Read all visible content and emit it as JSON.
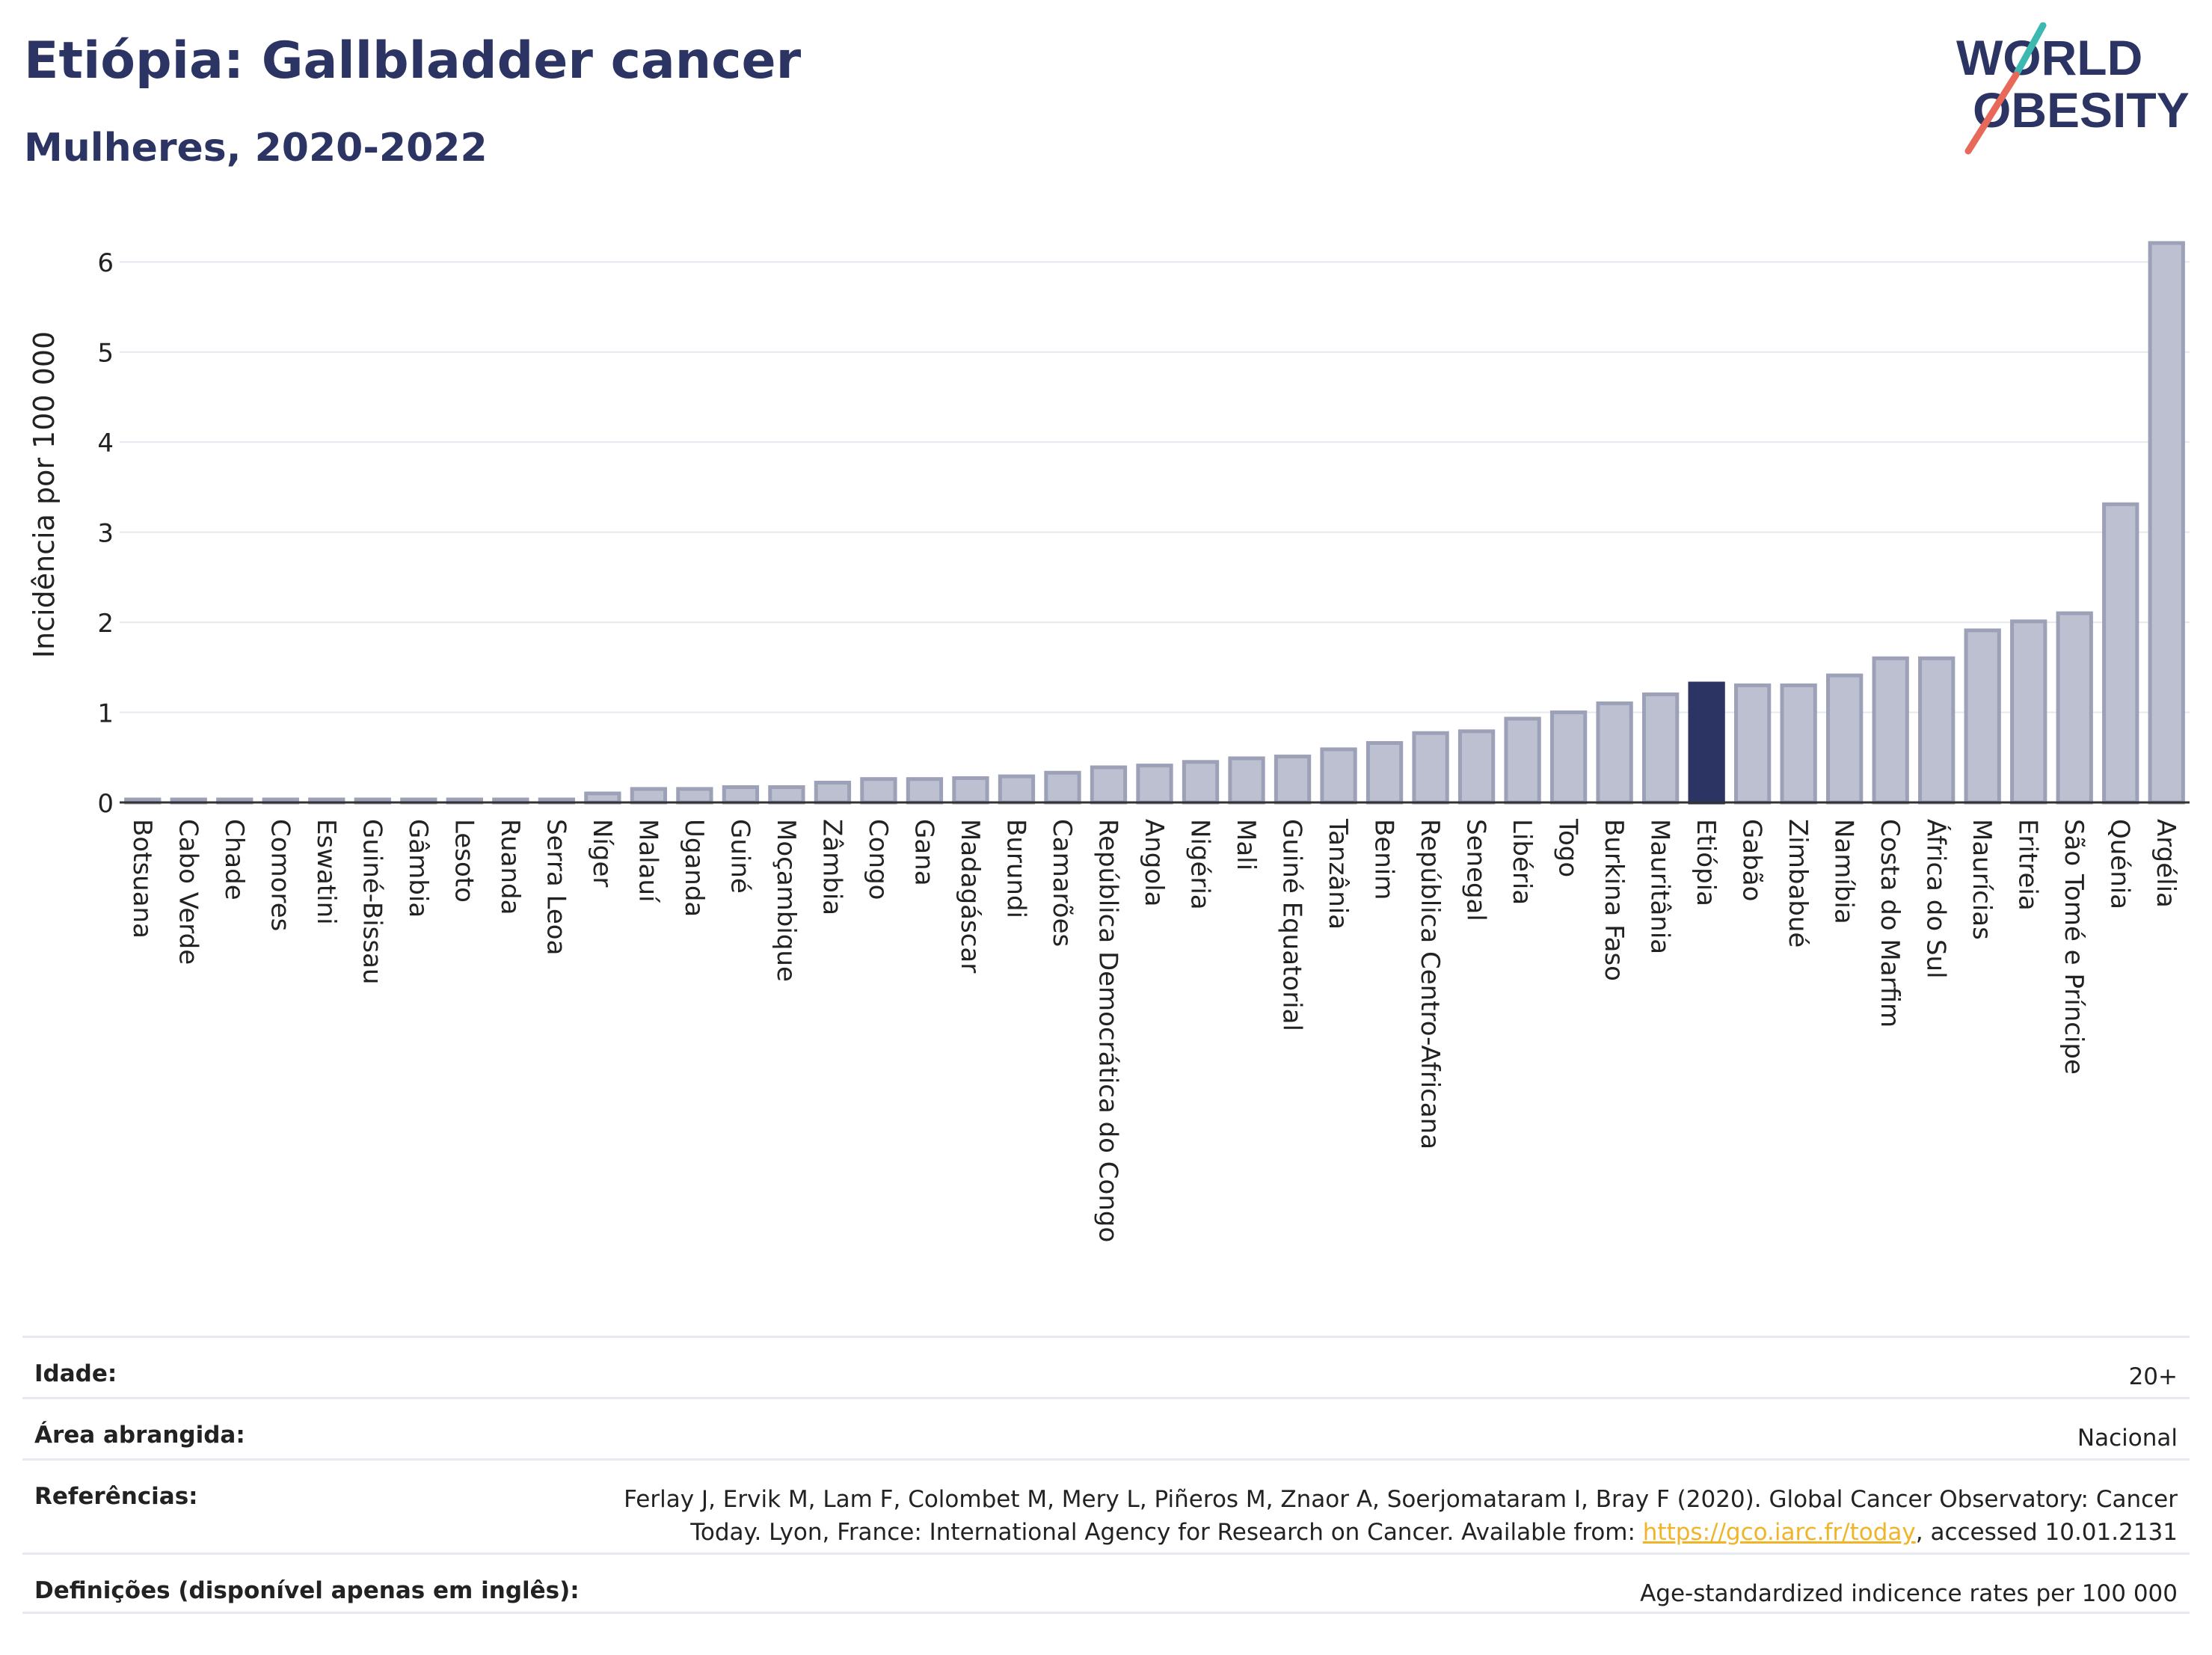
{
  "header": {
    "title": "Etiópia: Gallbladder cancer",
    "subtitle": "Mulheres, 2020-2022"
  },
  "logo": {
    "line1": "WORLD",
    "line2": "OBESITY"
  },
  "colors": {
    "bar": "#bcc0d0",
    "bar_stroke": "#9ca1b8",
    "highlight": "#2b3463",
    "title": "#2b3463",
    "link": "#f0b429"
  },
  "chart_data": {
    "type": "bar",
    "ylabel": "Incidência por 100 000",
    "ylim": [
      0,
      6.5
    ],
    "yticks": [
      0,
      1,
      2,
      3,
      4,
      5,
      6
    ],
    "grid": true,
    "highlight": "Etiópia",
    "categories": [
      "Botsuana",
      "Cabo Verde",
      "Chade",
      "Comores",
      "Eswatini",
      "Guiné-Bissau",
      "Gâmbia",
      "Lesoto",
      "Ruanda",
      "Serra Leoa",
      "Níger",
      "Malauí",
      "Uganda",
      "Guiné",
      "Moçambique",
      "Zâmbia",
      "Congo",
      "Gana",
      "Madagáscar",
      "Burundi",
      "Camarões",
      "República Democrática do Congo",
      "Angola",
      "Nigéria",
      "Mali",
      "Guiné Equatorial",
      "Tanzânia",
      "Benim",
      "República Centro-Africana",
      "Senegal",
      "Libéria",
      "Togo",
      "Burkina Faso",
      "Mauritânia",
      "Etiópia",
      "Gabão",
      "Zimbabué",
      "Namíbia",
      "Costa do Marfim",
      "África do Sul",
      "Maurícias",
      "Eritreia",
      "São Tomé e Príncipe",
      "Quénia",
      "Argélia"
    ],
    "values": [
      0.01,
      0.01,
      0.01,
      0.01,
      0.01,
      0.01,
      0.01,
      0.01,
      0.01,
      0.01,
      0.1,
      0.15,
      0.15,
      0.17,
      0.17,
      0.22,
      0.26,
      0.26,
      0.27,
      0.29,
      0.33,
      0.39,
      0.41,
      0.45,
      0.49,
      0.51,
      0.59,
      0.66,
      0.77,
      0.79,
      0.93,
      1.0,
      1.1,
      1.2,
      1.32,
      1.3,
      1.3,
      1.41,
      1.6,
      1.6,
      1.91,
      2.01,
      2.1,
      3.31,
      6.21
    ]
  },
  "meta": {
    "age_label": "Idade:",
    "age_value": "20+",
    "area_label": "Área abrangida:",
    "area_value": "Nacional",
    "ref_label": "Referências:",
    "ref_line1": "Ferlay J, Ervik M, Lam F, Colombet M, Mery L, Piñeros M, Znaor A, Soerjomataram I, Bray F (2020). Global Cancer Observatory: Cancer",
    "ref_line2_pre": "Today. Lyon, France: International Agency for Research on Cancer. Available from: ",
    "ref_link": "https://gco.iarc.fr/today",
    "ref_line2_post": ", accessed 10.01.2131",
    "def_label": "Definições (disponível apenas em inglês):",
    "def_value": "Age-standardized indicence rates per 100 000"
  }
}
